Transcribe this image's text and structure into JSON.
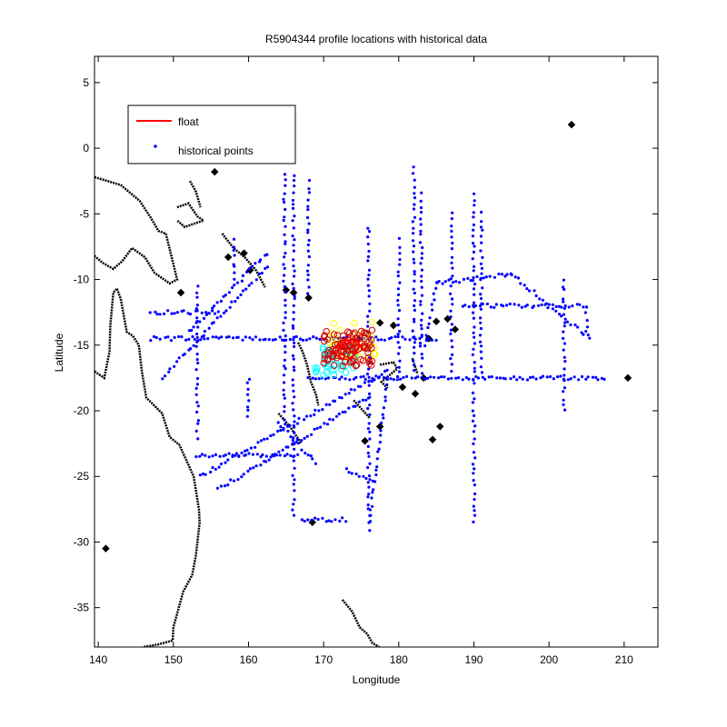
{
  "chart_data": {
    "type": "scatter",
    "title": "R5904344 profile locations with historical data",
    "xlabel": "Longitude",
    "ylabel": "Latitude",
    "xlim": [
      139.5,
      214.5
    ],
    "ylim": [
      -38,
      7
    ],
    "xticks": [
      140,
      150,
      160,
      170,
      180,
      190,
      200,
      210
    ],
    "yticks": [
      5,
      0,
      -5,
      -10,
      -15,
      -20,
      -25,
      -30,
      -35
    ],
    "grid": false,
    "legend_position": "top-left",
    "legend": [
      {
        "label": "float",
        "marker": "line",
        "color": "#ff0000"
      },
      {
        "label": "historical points",
        "marker": "dot",
        "color": "#0000ff"
      }
    ],
    "colors": {
      "float": "#ff0000",
      "historical": "#0000ff",
      "coastline": "#000000",
      "profiles_early": "#ffff00",
      "profiles_mid": "#00ffff",
      "profiles_late": "#cc0000"
    },
    "float_track": {
      "lon": [
        171.5,
        172.3,
        173.0,
        173.8,
        174.4,
        173.6,
        172.6,
        171.8,
        172.4,
        173.4,
        174.6,
        175.3,
        174.2,
        173.1,
        172.0,
        171.2,
        172.0,
        173.0,
        174.0,
        174.8,
        173.8,
        172.7
      ],
      "lat": [
        -15.6,
        -15.1,
        -14.6,
        -14.9,
        -15.5,
        -16.0,
        -15.8,
        -15.2,
        -14.7,
        -14.4,
        -14.8,
        -15.3,
        -15.7,
        -16.1,
        -15.9,
        -15.3,
        -14.9,
        -15.2,
        -15.6,
        -15.1,
        -14.6,
        -15.0
      ]
    },
    "profile_clusters": [
      {
        "color": "#ffff00",
        "lon": [
          170.5,
          177.0
        ],
        "lat": [
          -16.0,
          -13.2
        ],
        "count": 40
      },
      {
        "color": "#00ffff",
        "lon": [
          168.8,
          174.5
        ],
        "lat": [
          -17.3,
          -15.0
        ],
        "count": 45
      },
      {
        "color": "#cc0000",
        "lon": [
          170.0,
          176.5
        ],
        "lat": [
          -16.6,
          -13.8
        ],
        "count": 90
      }
    ],
    "historical_segments": [
      [
        [
          164.8,
          -2.0
        ],
        [
          164.8,
          -21.0
        ]
      ],
      [
        [
          166.0,
          -2.0
        ],
        [
          166.0,
          -28.0
        ]
      ],
      [
        [
          168.0,
          -2.5
        ],
        [
          168.0,
          -11.0
        ]
      ],
      [
        [
          182.0,
          -1.5
        ],
        [
          182.0,
          -17.0
        ]
      ],
      [
        [
          180.0,
          -7.0
        ],
        [
          180.0,
          -17.5
        ]
      ],
      [
        [
          176.0,
          -6.0
        ],
        [
          176.0,
          -28.5
        ]
      ],
      [
        [
          183.0,
          -3.5
        ],
        [
          183.0,
          -17.0
        ]
      ],
      [
        [
          187.0,
          -5.0
        ],
        [
          187.0,
          -17.0
        ]
      ],
      [
        [
          190.0,
          -3.5
        ],
        [
          190.0,
          -28.5
        ]
      ],
      [
        [
          191.0,
          -5.0
        ],
        [
          191.0,
          -17.0
        ]
      ],
      [
        [
          202.0,
          -10.0
        ],
        [
          202.0,
          -20.0
        ]
      ],
      [
        [
          205.0,
          -12.0
        ],
        [
          205.0,
          -14.0
        ]
      ],
      [
        [
          147.0,
          -14.5
        ],
        [
          185.0,
          -14.5
        ]
      ],
      [
        [
          168.0,
          -17.5
        ],
        [
          207.5,
          -17.5
        ]
      ],
      [
        [
          188.5,
          -12.0
        ],
        [
          205.0,
          -12.0
        ]
      ],
      [
        [
          185.0,
          -10.3
        ],
        [
          195.0,
          -9.6
        ]
      ],
      [
        [
          195.0,
          -9.6
        ],
        [
          205.5,
          -14.5
        ]
      ],
      [
        [
          183.5,
          -15.0
        ],
        [
          185.0,
          -10.3
        ]
      ],
      [
        [
          153.5,
          -25.0
        ],
        [
          178.5,
          -17.0
        ]
      ],
      [
        [
          153.0,
          -23.4
        ],
        [
          166.5,
          -23.4
        ]
      ],
      [
        [
          156.0,
          -26.0
        ],
        [
          176.0,
          -19.0
        ]
      ],
      [
        [
          148.5,
          -17.5
        ],
        [
          162.5,
          -9.0
        ]
      ],
      [
        [
          152.0,
          -14.0
        ],
        [
          162.5,
          -8.0
        ]
      ],
      [
        [
          147.0,
          -12.5
        ],
        [
          156.0,
          -12.5
        ]
      ],
      [
        [
          153.2,
          -10.5
        ],
        [
          153.2,
          -22.0
        ]
      ],
      [
        [
          160.0,
          -17.5
        ],
        [
          160.0,
          -20.5
        ]
      ],
      [
        [
          164.0,
          -21.0
        ],
        [
          169.0,
          -24.0
        ]
      ],
      [
        [
          167.0,
          -28.3
        ],
        [
          173.0,
          -28.3
        ]
      ],
      [
        [
          178.5,
          -17.5
        ],
        [
          176.0,
          -29.0
        ]
      ],
      [
        [
          173.0,
          -24.5
        ],
        [
          176.5,
          -25.5
        ]
      ],
      [
        [
          158.0,
          -7.0
        ],
        [
          158.0,
          -10.0
        ]
      ]
    ],
    "coastlines": [
      [
        [
          139.5,
          -2.2
        ],
        [
          143.0,
          -2.8
        ],
        [
          145.5,
          -4.0
        ],
        [
          147.0,
          -5.3
        ],
        [
          148.0,
          -6.3
        ],
        [
          149.0,
          -6.5
        ],
        [
          150.5,
          -10.0
        ],
        [
          149.5,
          -10.3
        ],
        [
          147.5,
          -9.5
        ],
        [
          146.2,
          -8.3
        ],
        [
          144.5,
          -7.6
        ],
        [
          143.2,
          -8.6
        ],
        [
          142.0,
          -9.2
        ],
        [
          140.5,
          -8.7
        ],
        [
          139.5,
          -8.2
        ]
      ],
      [
        [
          142.5,
          -10.7
        ],
        [
          143.0,
          -11.5
        ],
        [
          143.8,
          -14.0
        ],
        [
          144.6,
          -14.3
        ],
        [
          145.4,
          -15.0
        ],
        [
          145.8,
          -17.0
        ],
        [
          146.4,
          -19.0
        ],
        [
          148.5,
          -20.2
        ],
        [
          149.5,
          -22.0
        ],
        [
          150.8,
          -22.6
        ],
        [
          152.7,
          -25.0
        ],
        [
          153.4,
          -27.5
        ],
        [
          153.5,
          -28.5
        ],
        [
          153.0,
          -31.0
        ],
        [
          152.5,
          -32.5
        ],
        [
          151.3,
          -33.8
        ],
        [
          150.0,
          -36.5
        ],
        [
          149.9,
          -37.5
        ],
        [
          148.0,
          -37.8
        ],
        [
          146.0,
          -38.0
        ]
      ],
      [
        [
          139.5,
          -17.0
        ],
        [
          140.8,
          -17.5
        ],
        [
          141.5,
          -15.5
        ],
        [
          141.6,
          -13.5
        ],
        [
          142.0,
          -11.0
        ],
        [
          142.5,
          -10.7
        ]
      ],
      [
        [
          172.5,
          -34.4
        ],
        [
          173.8,
          -35.3
        ],
        [
          174.8,
          -36.5
        ],
        [
          175.8,
          -37.0
        ],
        [
          176.5,
          -37.7
        ],
        [
          177.4,
          -38.0
        ]
      ],
      [
        [
          156.5,
          -6.5
        ],
        [
          158.0,
          -7.6
        ],
        [
          159.5,
          -8.3
        ],
        [
          161.0,
          -9.3
        ],
        [
          162.2,
          -10.6
        ]
      ],
      [
        [
          150.5,
          -4.5
        ],
        [
          152.0,
          -4.2
        ],
        [
          153.2,
          -5.2
        ],
        [
          154.0,
          -5.5
        ],
        [
          151.5,
          -6.0
        ],
        [
          150.5,
          -5.5
        ]
      ],
      [
        [
          152.2,
          -2.5
        ],
        [
          153.0,
          -3.3
        ],
        [
          153.6,
          -4.5
        ]
      ],
      [
        [
          164.0,
          -20.2
        ],
        [
          165.5,
          -21.2
        ],
        [
          166.8,
          -22.3
        ],
        [
          167.0,
          -22.5
        ]
      ],
      [
        [
          166.6,
          -14.8
        ],
        [
          167.2,
          -15.5
        ],
        [
          167.8,
          -16.5
        ],
        [
          168.3,
          -17.8
        ],
        [
          169.0,
          -18.8
        ],
        [
          169.3,
          -19.6
        ]
      ],
      [
        [
          177.5,
          -16.5
        ],
        [
          179.3,
          -16.3
        ],
        [
          179.8,
          -16.8
        ],
        [
          177.7,
          -17.8
        ],
        [
          178.5,
          -18.3
        ]
      ],
      [
        [
          181.8,
          -16.0
        ],
        [
          182.5,
          -17.2
        ]
      ],
      [
        [
          174.0,
          -19.2
        ],
        [
          176.2,
          -20.6
        ]
      ]
    ],
    "islands": [
      [
        203.0,
        1.8
      ],
      [
        210.5,
        -17.5
      ],
      [
        180.5,
        -18.2
      ],
      [
        182.2,
        -18.7
      ],
      [
        185.5,
        -21.2
      ],
      [
        184.5,
        -22.2
      ],
      [
        175.5,
        -22.3
      ],
      [
        177.5,
        -13.3
      ],
      [
        179.3,
        -13.5
      ],
      [
        186.5,
        -13.0
      ],
      [
        187.5,
        -13.8
      ],
      [
        185.0,
        -13.2
      ],
      [
        177.5,
        -21.2
      ],
      [
        168.5,
        -28.5
      ],
      [
        168.0,
        -11.4
      ],
      [
        165.0,
        -10.8
      ],
      [
        166.0,
        -11.0
      ],
      [
        155.5,
        -1.8
      ],
      [
        160.2,
        -9.3
      ],
      [
        159.4,
        -8.0
      ],
      [
        141.0,
        -30.5
      ],
      [
        151.0,
        -11.0
      ],
      [
        157.3,
        -8.3
      ],
      [
        184.0,
        -14.5
      ],
      [
        183.3,
        -17.5
      ]
    ]
  }
}
